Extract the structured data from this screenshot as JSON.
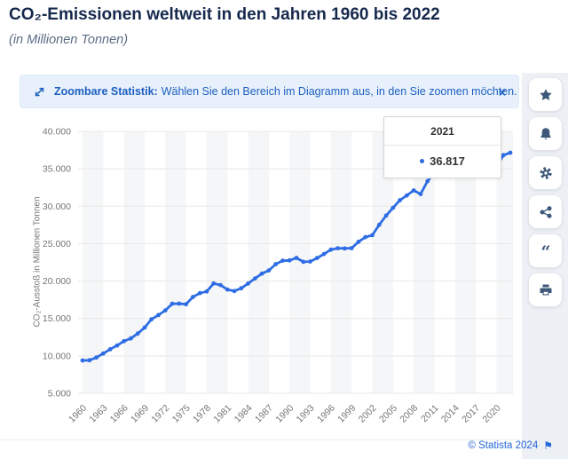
{
  "page": {
    "title": "CO₂-Emissionen weltweit in den Jahren 1960 bis 2022",
    "subtitle": "(in Millionen Tonnen)",
    "footer": "© Statista 2024"
  },
  "banner": {
    "icon": "zoom-diagonal-arrows-icon",
    "bold_label": "Zoombare Statistik:",
    "message": "Wählen Sie den Bereich im Diagramm aus, in den Sie zoomen möchten.",
    "close_label": "×"
  },
  "sidebar": {
    "buttons": [
      {
        "name": "favorite",
        "icon": "star-icon"
      },
      {
        "name": "notifications",
        "icon": "bell-icon"
      },
      {
        "name": "settings",
        "icon": "gear-icon"
      },
      {
        "name": "share",
        "icon": "share-icon"
      },
      {
        "name": "cite",
        "icon": "quote-icon"
      },
      {
        "name": "print",
        "icon": "printer-icon"
      }
    ]
  },
  "tooltip": {
    "year": "2021",
    "value": "36.817"
  },
  "colors": {
    "line": "#2e6de4",
    "stripe": "#f5f6f7",
    "grid": "#e8e8e8",
    "axis_text": "#757575",
    "icon": "#3d5878",
    "banner_text": "#1d5fc0",
    "footer_blue": "#2566d8",
    "title_navy": "#16294d"
  },
  "chart_data": {
    "type": "line",
    "title": "CO₂-Emissionen weltweit in den Jahren 1960 bis 2022",
    "ylabel": "CO₂-Ausstoß in Millionen Tonnen",
    "xlabel": "",
    "ylim": [
      5000,
      40000
    ],
    "ytick_step": 5000,
    "xtick_step": 3,
    "grid": true,
    "legend": "none",
    "x": [
      1960,
      1961,
      1962,
      1963,
      1964,
      1965,
      1966,
      1967,
      1968,
      1969,
      1970,
      1971,
      1972,
      1973,
      1974,
      1975,
      1976,
      1977,
      1978,
      1979,
      1980,
      1981,
      1982,
      1983,
      1984,
      1985,
      1986,
      1987,
      1988,
      1989,
      1990,
      1991,
      1992,
      1993,
      1994,
      1995,
      1996,
      1997,
      1998,
      1999,
      2000,
      2001,
      2002,
      2003,
      2004,
      2005,
      2006,
      2007,
      2008,
      2009,
      2010,
      2011,
      2012,
      2013,
      2014,
      2015,
      2016,
      2017,
      2018,
      2019,
      2020,
      2021,
      2022
    ],
    "values": [
      9388,
      9411,
      9780,
      10315,
      10889,
      11383,
      11962,
      12333,
      12985,
      13797,
      14898,
      15454,
      16086,
      16967,
      16987,
      16895,
      17867,
      18380,
      18610,
      19672,
      19465,
      18856,
      18667,
      19032,
      19680,
      20347,
      20988,
      21418,
      22263,
      22724,
      22757,
      23089,
      22574,
      22605,
      23084,
      23616,
      24199,
      24388,
      24363,
      24396,
      25249,
      25869,
      26128,
      27519,
      28748,
      29789,
      30801,
      31442,
      32115,
      31625,
      33345,
      34487,
      35012,
      35314,
      35531,
      35505,
      35524,
      36096,
      36826,
      37082,
      35264,
      36817,
      37150
    ],
    "highlighted_point": {
      "x": 2021,
      "y": 36817
    }
  }
}
